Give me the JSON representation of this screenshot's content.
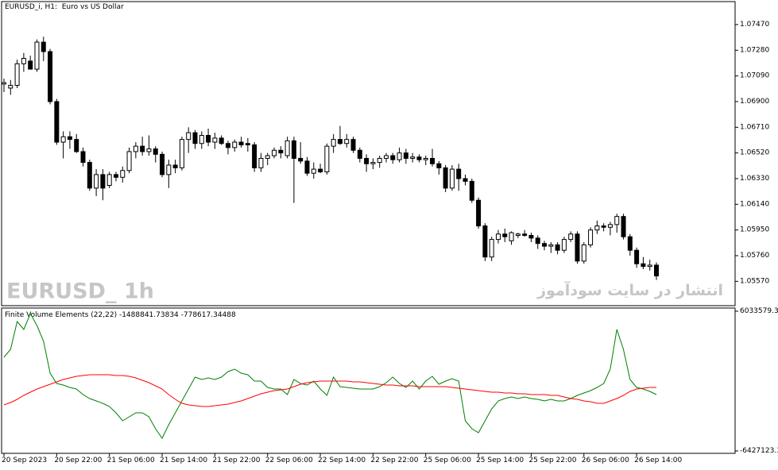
{
  "chart_data": [
    {
      "type": "candlestick",
      "title": "EURUSD_i, H1:  Euro vs US Dollar",
      "annotations": [
        "EURUSD_ 1h",
        "انتشار در سایت سودآموز"
      ],
      "up_color": "#ffffff",
      "down_color": "#000000",
      "edge_color": "#000000",
      "ylim": [
        1.0539,
        1.0764
      ],
      "yticks": [
        {
          "value": 1.0747,
          "label": "1.07470"
        },
        {
          "value": 1.0728,
          "label": "1.07280"
        },
        {
          "value": 1.0709,
          "label": "1.07090"
        },
        {
          "value": 1.069,
          "label": "1.06900"
        },
        {
          "value": 1.0671,
          "label": "1.06710"
        },
        {
          "value": 1.0652,
          "label": "1.06520"
        },
        {
          "value": 1.0633,
          "label": "1.06330"
        },
        {
          "value": 1.0614,
          "label": "1.06140"
        },
        {
          "value": 1.0595,
          "label": "1.05950"
        },
        {
          "value": 1.0576,
          "label": "1.05760"
        },
        {
          "value": 1.0557,
          "label": "1.05570"
        }
      ],
      "candles": [
        [
          1.0703,
          1.0707,
          1.0697,
          1.0704
        ],
        [
          1.07,
          1.0706,
          1.0695,
          1.0702
        ],
        [
          1.0702,
          1.0721,
          1.07,
          1.0718
        ],
        [
          1.0718,
          1.0726,
          1.0712,
          1.0722
        ],
        [
          1.072,
          1.0724,
          1.0715,
          1.0714
        ],
        [
          1.0714,
          1.0736,
          1.0712,
          1.0734
        ],
        [
          1.0734,
          1.0738,
          1.072,
          1.0727
        ],
        [
          1.0727,
          1.0729,
          1.0688,
          1.069
        ],
        [
          1.069,
          1.0692,
          1.0658,
          1.066
        ],
        [
          1.066,
          1.0668,
          1.0648,
          1.0664
        ],
        [
          1.0664,
          1.0668,
          1.0655,
          1.0662
        ],
        [
          1.0662,
          1.0666,
          1.0652,
          1.0653
        ],
        [
          1.0653,
          1.0656,
          1.0642,
          1.0645
        ],
        [
          1.0645,
          1.0647,
          1.0624,
          1.0626
        ],
        [
          1.0626,
          1.064,
          1.062,
          1.0636
        ],
        [
          1.0636,
          1.064,
          1.0617,
          1.0626
        ],
        [
          1.0628,
          1.0638,
          1.0626,
          1.0636
        ],
        [
          1.0636,
          1.0638,
          1.0631,
          1.0634
        ],
        [
          1.0634,
          1.0642,
          1.063,
          1.0639
        ],
        [
          1.0639,
          1.0656,
          1.0637,
          1.0653
        ],
        [
          1.0653,
          1.066,
          1.0648,
          1.0657
        ],
        [
          1.0657,
          1.0664,
          1.065,
          1.0653
        ],
        [
          1.0653,
          1.0665,
          1.065,
          1.0655
        ],
        [
          1.0655,
          1.0657,
          1.0645,
          1.0651
        ],
        [
          1.0651,
          1.0653,
          1.0634,
          1.0636
        ],
        [
          1.0636,
          1.0647,
          1.0626,
          1.0643
        ],
        [
          1.0643,
          1.0647,
          1.0637,
          1.0641
        ],
        [
          1.0641,
          1.0664,
          1.0639,
          1.0662
        ],
        [
          1.0662,
          1.0671,
          1.0652,
          1.0667
        ],
        [
          1.0667,
          1.0669,
          1.0655,
          1.0659
        ],
        [
          1.0659,
          1.0668,
          1.0655,
          1.0665
        ],
        [
          1.0665,
          1.067,
          1.0657,
          1.066
        ],
        [
          1.066,
          1.0667,
          1.0655,
          1.0663
        ],
        [
          1.0663,
          1.0665,
          1.0658,
          1.0659
        ],
        [
          1.0659,
          1.0661,
          1.0651,
          1.0656
        ],
        [
          1.0656,
          1.0662,
          1.0653,
          1.066
        ],
        [
          1.066,
          1.0664,
          1.0656,
          1.0658
        ],
        [
          1.0659,
          1.0663,
          1.0653,
          1.0658
        ],
        [
          1.0658,
          1.066,
          1.0638,
          1.0641
        ],
        [
          1.0641,
          1.0652,
          1.0638,
          1.0648
        ],
        [
          1.0648,
          1.0652,
          1.0643,
          1.065
        ],
        [
          1.065,
          1.0656,
          1.0648,
          1.0654
        ],
        [
          1.0654,
          1.0657,
          1.0648,
          1.0652
        ],
        [
          1.065,
          1.0664,
          1.0648,
          1.0661
        ],
        [
          1.0661,
          1.0664,
          1.0615,
          1.0648
        ],
        [
          1.0648,
          1.066,
          1.0644,
          1.0646
        ],
        [
          1.0646,
          1.0649,
          1.0635,
          1.0637
        ],
        [
          1.0637,
          1.0645,
          1.0633,
          1.064
        ],
        [
          1.064,
          1.0644,
          1.0637,
          1.0638
        ],
        [
          1.0638,
          1.0659,
          1.0636,
          1.0657
        ],
        [
          1.0657,
          1.0666,
          1.0652,
          1.0662
        ],
        [
          1.0662,
          1.0672,
          1.0658,
          1.0659
        ],
        [
          1.0659,
          1.0666,
          1.0656,
          1.0662
        ],
        [
          1.0662,
          1.0664,
          1.0652,
          1.0654
        ],
        [
          1.0654,
          1.0656,
          1.0645,
          1.0648
        ],
        [
          1.0648,
          1.0651,
          1.0638,
          1.0644
        ],
        [
          1.0644,
          1.0648,
          1.064,
          1.0645
        ],
        [
          1.0645,
          1.065,
          1.0641,
          1.0648
        ],
        [
          1.0648,
          1.0652,
          1.0645,
          1.065
        ],
        [
          1.065,
          1.0652,
          1.0644,
          1.0647
        ],
        [
          1.0647,
          1.0656,
          1.0645,
          1.0652
        ],
        [
          1.0652,
          1.0655,
          1.0644,
          1.0648
        ],
        [
          1.0648,
          1.0652,
          1.0645,
          1.0649
        ],
        [
          1.0649,
          1.0651,
          1.0645,
          1.0647
        ],
        [
          1.0647,
          1.065,
          1.0643,
          1.0648
        ],
        [
          1.0648,
          1.0655,
          1.0642,
          1.0644
        ],
        [
          1.0644,
          1.0646,
          1.0636,
          1.0641
        ],
        [
          1.0641,
          1.0643,
          1.0623,
          1.0626
        ],
        [
          1.0626,
          1.0643,
          1.0624,
          1.064
        ],
        [
          1.064,
          1.0644,
          1.0624,
          1.0633
        ],
        [
          1.0633,
          1.0636,
          1.0628,
          1.0631
        ],
        [
          1.0631,
          1.0633,
          1.0615,
          1.0617
        ],
        [
          1.0617,
          1.0619,
          1.0596,
          1.0598
        ],
        [
          1.0598,
          1.06,
          1.0572,
          1.0575
        ],
        [
          1.0575,
          1.059,
          1.0572,
          1.0588
        ],
        [
          1.0588,
          1.0595,
          1.0585,
          1.0592
        ],
        [
          1.0592,
          1.0596,
          1.0586,
          1.059
        ],
        [
          1.0587,
          1.0594,
          1.0584,
          1.0593
        ],
        [
          1.0591,
          1.0593,
          1.0589,
          1.0592
        ],
        [
          1.0592,
          1.0595,
          1.059,
          1.0591
        ],
        [
          1.0591,
          1.0593,
          1.0586,
          1.0589
        ],
        [
          1.0589,
          1.0591,
          1.0581,
          1.0585
        ],
        [
          1.0585,
          1.0587,
          1.058,
          1.0583
        ],
        [
          1.0583,
          1.0586,
          1.0578,
          1.0584
        ],
        [
          1.0584,
          1.0586,
          1.0577,
          1.058
        ],
        [
          1.058,
          1.059,
          1.0578,
          1.0588
        ],
        [
          1.0588,
          1.0594,
          1.0586,
          1.0592
        ],
        [
          1.0592,
          1.0594,
          1.057,
          1.0572
        ],
        [
          1.0572,
          1.0586,
          1.057,
          1.0584
        ],
        [
          1.0584,
          1.0597,
          1.0582,
          1.0595
        ],
        [
          1.0595,
          1.0602,
          1.0592,
          1.0598
        ],
        [
          1.0598,
          1.06,
          1.0594,
          1.0597
        ],
        [
          1.0597,
          1.0601,
          1.0591,
          1.0599
        ],
        [
          1.0599,
          1.0607,
          1.0593,
          1.0605
        ],
        [
          1.0605,
          1.0607,
          1.0588,
          1.059
        ],
        [
          1.059,
          1.0592,
          1.0576,
          1.058
        ],
        [
          1.058,
          1.0582,
          1.0567,
          1.057
        ],
        [
          1.057,
          1.0575,
          1.0566,
          1.0568
        ],
        [
          1.0568,
          1.0573,
          1.0565,
          1.0569
        ],
        [
          1.0569,
          1.0571,
          1.0558,
          1.0561
        ]
      ]
    },
    {
      "type": "line",
      "title": "Finite Volume Elements (22,22) -1488841.73834 -778617.34488",
      "ylim": [
        -6427123.32,
        6033579.33
      ],
      "yticks": [
        6033579.33,
        -6427123.32
      ],
      "categories": [
        "20 Sep 2023",
        null,
        null,
        null,
        null,
        null,
        null,
        null,
        "20 Sep 22:00",
        null,
        null,
        null,
        null,
        null,
        null,
        null,
        "21 Sep 06:00",
        null,
        null,
        null,
        null,
        null,
        null,
        null,
        "21 Sep 14:00",
        null,
        null,
        null,
        null,
        null,
        null,
        null,
        "21 Sep 22:00",
        null,
        null,
        null,
        null,
        null,
        null,
        null,
        "22 Sep 06:00",
        null,
        null,
        null,
        null,
        null,
        null,
        null,
        "22 Sep 14:00",
        null,
        null,
        null,
        null,
        null,
        null,
        null,
        "22 Sep 22:00",
        null,
        null,
        null,
        null,
        null,
        null,
        null,
        "25 Sep 06:00",
        null,
        null,
        null,
        null,
        null,
        null,
        null,
        "25 Sep 14:00",
        null,
        null,
        null,
        null,
        null,
        null,
        null,
        "25 Sep 22:00",
        null,
        null,
        null,
        null,
        null,
        null,
        null,
        "26 Sep 06:00",
        null,
        null,
        null,
        null,
        null,
        null,
        null,
        "26 Sep 14:00",
        null,
        null,
        null
      ],
      "series": [
        {
          "color": "#008000",
          "values": [
            1927000,
            2635000,
            5113000,
            4405000,
            5821000,
            4759000,
            3343000,
            512000,
            -409000,
            -551000,
            -763000,
            -905000,
            -1400000,
            -1754000,
            -1967000,
            -2179000,
            -2463000,
            -3029000,
            -3737000,
            -3383000,
            -3029000,
            -3029000,
            -3383000,
            -4445000,
            -5295000,
            -4091000,
            -3029000,
            -1967000,
            -905000,
            157000,
            -55000,
            86000,
            -55000,
            157000,
            653000,
            865000,
            512000,
            370000,
            -197000,
            -197000,
            -763000,
            -905000,
            -905000,
            -1400000,
            -55000,
            -409000,
            -551000,
            -197000,
            -905000,
            -1471000,
            157000,
            -692000,
            -763000,
            -834000,
            -905000,
            -905000,
            -905000,
            -692000,
            -339000,
            157000,
            -409000,
            -763000,
            -197000,
            -905000,
            -197000,
            228000,
            -480000,
            -197000,
            16000,
            -197000,
            -3737000,
            -4445000,
            -4799000,
            -3737000,
            -2675000,
            -1967000,
            -1754000,
            -1613000,
            -1754000,
            -1613000,
            -1754000,
            -1825000,
            -1967000,
            -1825000,
            -1967000,
            -1967000,
            -1754000,
            -1471000,
            -1259000,
            -1047000,
            -763000,
            -409000,
            865000,
            4405000,
            2635000,
            -55000,
            -763000,
            -905000,
            -1117000,
            -1400000
          ]
        },
        {
          "color": "#ff0000",
          "values": [
            -2321000,
            -2108000,
            -1825000,
            -1471000,
            -1188000,
            -905000,
            -692000,
            -480000,
            -268000,
            -55000,
            86000,
            228000,
            299000,
            370000,
            370000,
            370000,
            370000,
            299000,
            299000,
            228000,
            86000,
            -126000,
            -339000,
            -622000,
            -905000,
            -1400000,
            -1825000,
            -2179000,
            -2321000,
            -2392000,
            -2463000,
            -2463000,
            -2392000,
            -2321000,
            -2250000,
            -2108000,
            -1967000,
            -1754000,
            -1542000,
            -1330000,
            -1188000,
            -1047000,
            -976000,
            -905000,
            -692000,
            -480000,
            -339000,
            -268000,
            -197000,
            -197000,
            -197000,
            -197000,
            -197000,
            -268000,
            -268000,
            -339000,
            -409000,
            -480000,
            -551000,
            -551000,
            -622000,
            -622000,
            -622000,
            -692000,
            -692000,
            -692000,
            -692000,
            -692000,
            -763000,
            -834000,
            -905000,
            -976000,
            -1047000,
            -1117000,
            -1188000,
            -1188000,
            -1259000,
            -1259000,
            -1330000,
            -1330000,
            -1400000,
            -1400000,
            -1400000,
            -1471000,
            -1471000,
            -1613000,
            -1754000,
            -1825000,
            -1967000,
            -2038000,
            -2179000,
            -2179000,
            -1967000,
            -1754000,
            -1471000,
            -1117000,
            -905000,
            -834000,
            -763000,
            -763000
          ]
        }
      ]
    }
  ]
}
